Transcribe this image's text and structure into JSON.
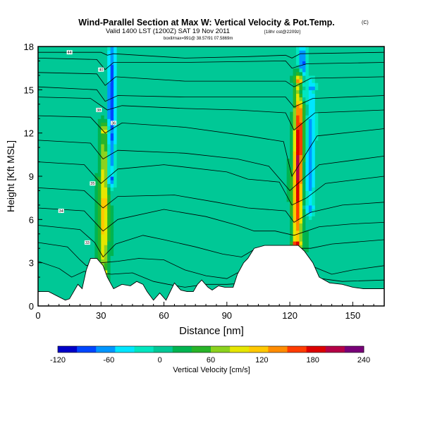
{
  "chart_data": {
    "type": "heatmap",
    "title": "Wind-Parallel Section at Max W: Vertical Velocity & Pot.Temp.",
    "copyright": "(C)",
    "subtitle": "Valid 1400 LST (1200Z) SAT 19 Nov 2011",
    "subtitle_extra": "[18hr cst@2209z]",
    "subtitle2": "boxll/max=991@ 38.57/91 07.5869m",
    "xlabel": "Distance [nm]",
    "ylabel": "Height [Kft MSL]",
    "xlim": [
      0,
      165
    ],
    "ylim": [
      0,
      18
    ],
    "xticks": [
      0,
      30,
      60,
      90,
      120,
      150
    ],
    "yticks": [
      0,
      3,
      6,
      9,
      12,
      15,
      18
    ],
    "colorbar": {
      "label": "Vertical Velocity [cm/s]",
      "range": [
        -120,
        240
      ],
      "tick_labels": [
        "-120",
        "-60",
        "0",
        "60",
        "120",
        "180",
        "240"
      ],
      "colors": [
        "#0000c8",
        "#0046ff",
        "#0096ff",
        "#00e6ff",
        "#00e6c0",
        "#00c896",
        "#00b450",
        "#28b428",
        "#8cd21e",
        "#e6e600",
        "#ffc800",
        "#ff8c00",
        "#ff3c00",
        "#dc0000",
        "#b40046",
        "#780078"
      ]
    },
    "background_w": 10,
    "updraft_cores": [
      {
        "name": "left-updraft",
        "x": 31.5,
        "z_bottom": 2.5,
        "z_top": 12,
        "w_max": 110
      },
      {
        "name": "left-downdraft",
        "x": 35,
        "z_bottom": 9,
        "z_top": 18,
        "w_max": -110
      },
      {
        "name": "right-updraft",
        "x": 124,
        "z_bottom": 4.5,
        "z_top": 15.5,
        "w_max": 190
      },
      {
        "name": "right-downdraft",
        "x": 130,
        "z_bottom": 7,
        "z_top": 15,
        "w_max": -80
      },
      {
        "name": "right-top-downdraft",
        "x": 126,
        "z_bottom": 15,
        "z_top": 18,
        "w_max": -100
      }
    ],
    "terrain": [
      [
        0,
        1
      ],
      [
        5,
        1
      ],
      [
        9,
        0.7
      ],
      [
        13,
        0.4
      ],
      [
        15,
        0.5
      ],
      [
        19,
        1.5
      ],
      [
        21,
        1.2
      ],
      [
        23,
        2.5
      ],
      [
        25,
        3.3
      ],
      [
        28,
        3.3
      ],
      [
        31,
        2.8
      ],
      [
        33,
        2
      ],
      [
        36,
        1.2
      ],
      [
        40,
        1.5
      ],
      [
        44,
        1.4
      ],
      [
        47,
        1.7
      ],
      [
        50,
        1.5
      ],
      [
        52,
        1
      ],
      [
        55,
        0.4
      ],
      [
        58,
        0.9
      ],
      [
        61,
        0.4
      ],
      [
        63,
        1
      ],
      [
        65,
        1.6
      ],
      [
        68,
        1.1
      ],
      [
        71,
        1
      ],
      [
        74,
        1
      ],
      [
        76,
        1.5
      ],
      [
        78,
        1.8
      ],
      [
        81,
        1.3
      ],
      [
        83,
        1.1
      ],
      [
        86,
        1.4
      ],
      [
        89,
        1.3
      ],
      [
        93,
        1.3
      ],
      [
        95,
        2.2
      ],
      [
        98,
        3
      ],
      [
        100,
        3.3
      ],
      [
        103,
        4
      ],
      [
        108,
        4.2
      ],
      [
        112,
        4.2
      ],
      [
        116,
        4.2
      ],
      [
        121,
        4.2
      ],
      [
        124,
        4.2
      ],
      [
        127,
        3.8
      ],
      [
        131,
        3
      ],
      [
        134,
        2
      ],
      [
        139,
        1.6
      ],
      [
        145,
        1.5
      ],
      [
        150,
        1.3
      ],
      [
        155,
        1.2
      ],
      [
        160,
        1.2
      ],
      [
        165,
        1.2
      ]
    ],
    "isentropes": [
      {
        "label": "44",
        "points": [
          [
            0,
            17.6
          ],
          [
            30,
            17.6
          ],
          [
            33,
            17.4
          ],
          [
            36,
            17.5
          ],
          [
            70,
            17.2
          ],
          [
            100,
            17.3
          ],
          [
            118,
            17.4
          ],
          [
            121,
            17.2
          ],
          [
            125,
            17.5
          ],
          [
            165,
            17.6
          ]
        ]
      },
      {
        "label": "40",
        "points": [
          [
            0,
            17.2
          ],
          [
            28,
            17.1
          ],
          [
            32,
            16.4
          ],
          [
            36,
            16.9
          ],
          [
            70,
            16.9
          ],
          [
            118,
            17
          ],
          [
            121,
            16.5
          ],
          [
            128,
            16.8
          ],
          [
            165,
            16.9
          ]
        ]
      },
      {
        "label": "",
        "points": [
          [
            0,
            16.2
          ],
          [
            28,
            16.1
          ],
          [
            32,
            15.3
          ],
          [
            37,
            15.9
          ],
          [
            70,
            15.6
          ],
          [
            118,
            15.6
          ],
          [
            122,
            15.2
          ],
          [
            130,
            15.8
          ],
          [
            165,
            15.9
          ]
        ]
      },
      {
        "label": "",
        "points": [
          [
            0,
            15.2
          ],
          [
            28,
            15
          ],
          [
            32,
            14.2
          ],
          [
            38,
            14.6
          ],
          [
            70,
            14.5
          ],
          [
            118,
            14.5
          ],
          [
            122,
            13.8
          ],
          [
            131,
            14.4
          ],
          [
            165,
            14.6
          ]
        ]
      },
      {
        "label": "38",
        "points": [
          [
            0,
            14.5
          ],
          [
            25,
            14.4
          ],
          [
            33,
            13.6
          ],
          [
            40,
            13.9
          ],
          [
            70,
            13.7
          ],
          [
            95,
            13.6
          ],
          [
            118,
            13.4
          ],
          [
            122,
            12.2
          ],
          [
            132,
            13.4
          ],
          [
            165,
            13.6
          ]
        ]
      },
      {
        "label": "36",
        "points": [
          [
            0,
            13.2
          ],
          [
            25,
            13.1
          ],
          [
            32,
            12
          ],
          [
            40,
            12.7
          ],
          [
            70,
            12.4
          ],
          [
            100,
            11.8
          ],
          [
            117,
            11.4
          ],
          [
            121,
            9
          ],
          [
            133,
            11.8
          ],
          [
            165,
            12.3
          ]
        ]
      },
      {
        "label": "",
        "points": [
          [
            0,
            11.5
          ],
          [
            25,
            11.3
          ],
          [
            31,
            10.2
          ],
          [
            38,
            10.8
          ],
          [
            70,
            10.6
          ],
          [
            95,
            10.2
          ],
          [
            110,
            9.7
          ],
          [
            120,
            8
          ],
          [
            134,
            9.8
          ],
          [
            165,
            10.4
          ]
        ]
      },
      {
        "label": "35",
        "points": [
          [
            0,
            10
          ],
          [
            22,
            9.8
          ],
          [
            30,
            8.5
          ],
          [
            38,
            9.5
          ],
          [
            60,
            9.8
          ],
          [
            90,
            9.3
          ],
          [
            100,
            8.8
          ],
          [
            115,
            8.6
          ],
          [
            121,
            7
          ],
          [
            128,
            7.5
          ],
          [
            137,
            8.5
          ],
          [
            165,
            9
          ]
        ]
      },
      {
        "label": "",
        "points": [
          [
            0,
            8.2
          ],
          [
            22,
            8
          ],
          [
            31,
            6.8
          ],
          [
            38,
            7.6
          ],
          [
            65,
            7.7
          ],
          [
            85,
            7.2
          ],
          [
            100,
            6.8
          ],
          [
            118,
            6.6
          ],
          [
            122,
            5.8
          ],
          [
            130,
            6.5
          ],
          [
            145,
            7
          ],
          [
            165,
            7.2
          ]
        ]
      },
      {
        "label": "34",
        "points": [
          [
            0,
            6.8
          ],
          [
            22,
            6.6
          ],
          [
            31,
            5.2
          ],
          [
            38,
            6
          ],
          [
            60,
            6.7
          ],
          [
            80,
            6.2
          ],
          [
            95,
            5.6
          ],
          [
            103,
            5.2
          ],
          [
            113,
            5.2
          ],
          [
            122,
            4.9
          ],
          [
            134,
            5.5
          ],
          [
            150,
            5.7
          ],
          [
            165,
            5.8
          ]
        ]
      },
      {
        "label": "33",
        "points": [
          [
            0,
            5.6
          ],
          [
            20,
            5.3
          ],
          [
            27,
            4.4
          ],
          [
            31,
            3.4
          ],
          [
            37,
            4.3
          ],
          [
            50,
            4.9
          ],
          [
            60,
            4.6
          ],
          [
            75,
            4.1
          ],
          [
            88,
            3.6
          ],
          [
            97,
            3.4
          ],
          [
            104,
            4
          ],
          [
            130,
            4
          ],
          [
            140,
            4.3
          ],
          [
            165,
            4.6
          ]
        ]
      },
      {
        "label": "",
        "points": [
          [
            0,
            4.4
          ],
          [
            14,
            4.1
          ],
          [
            20,
            3.2
          ],
          [
            23,
            2.8
          ],
          [
            30,
            3
          ],
          [
            38,
            3.1
          ],
          [
            48,
            3.3
          ],
          [
            60,
            3.2
          ],
          [
            70,
            2.5
          ],
          [
            80,
            2.1
          ],
          [
            90,
            1.9
          ],
          [
            95,
            2.3
          ],
          [
            130,
            2.8
          ],
          [
            140,
            2.2
          ],
          [
            150,
            2.5
          ],
          [
            165,
            2.8
          ]
        ]
      },
      {
        "label": "",
        "points": [
          [
            0,
            3.1
          ],
          [
            10,
            2.6
          ],
          [
            16,
            2
          ],
          [
            22,
            2.4
          ],
          [
            35,
            2.2
          ],
          [
            45,
            2.3
          ],
          [
            55,
            1.7
          ],
          [
            62,
            1.5
          ],
          [
            70,
            1.3
          ],
          [
            80,
            1.5
          ],
          [
            90,
            1.5
          ],
          [
            135,
            1.9
          ],
          [
            145,
            1.7
          ],
          [
            165,
            1.8
          ]
        ]
      }
    ]
  }
}
